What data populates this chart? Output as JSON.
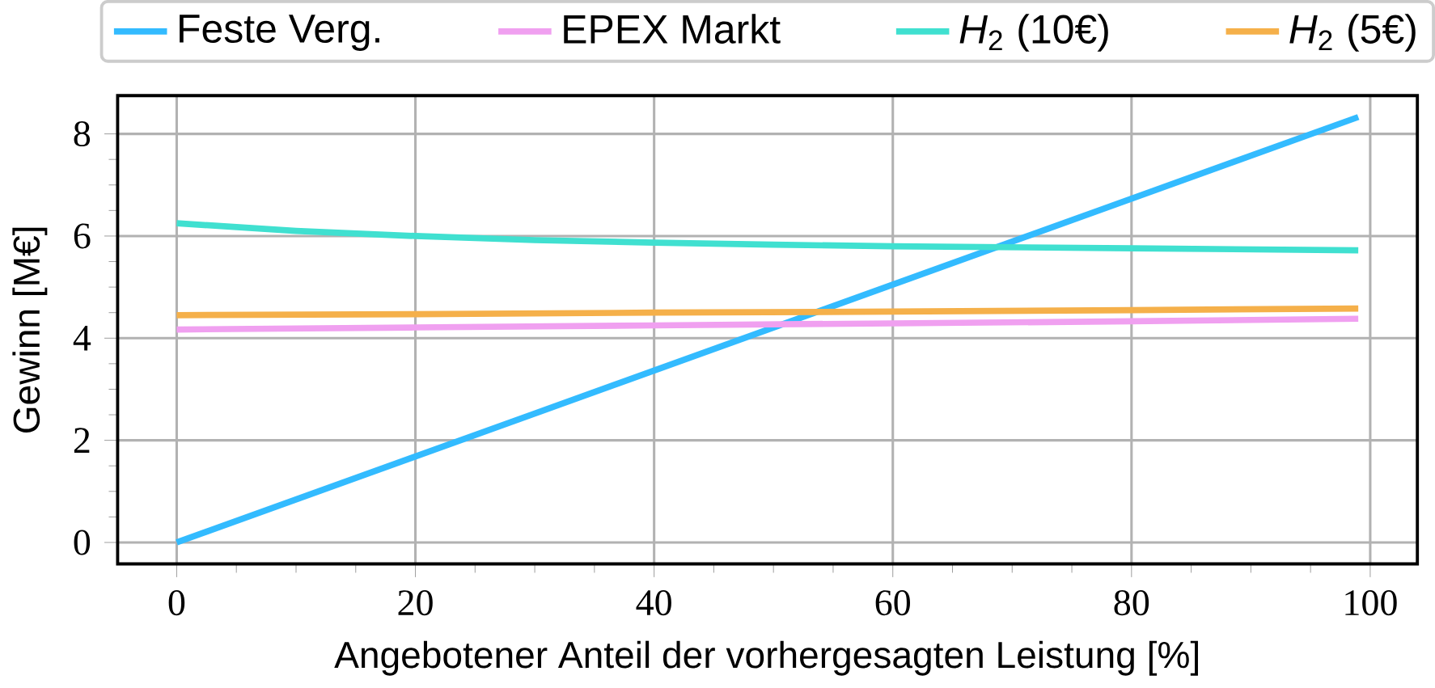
{
  "chart_data": {
    "type": "line",
    "xlabel": "Angebotener Anteil der vorhergesagten Leistung [%]",
    "ylabel": "Gewinn [M€]",
    "xlim": [
      -4.95,
      103.95
    ],
    "ylim": [
      -0.42,
      8.75
    ],
    "xticks": [
      0,
      20,
      40,
      60,
      80,
      100
    ],
    "yticks": [
      0,
      2,
      4,
      6,
      8
    ],
    "grid": true,
    "legend": "top",
    "series": [
      {
        "name": "Feste Verg.",
        "color": "#33bbff",
        "x": [
          0,
          99
        ],
        "values": [
          0,
          8.33
        ]
      },
      {
        "name": "EPEX Markt",
        "color": "#f0a0f0",
        "x": [
          0,
          20,
          40,
          60,
          80,
          99
        ],
        "values": [
          4.17,
          4.21,
          4.25,
          4.29,
          4.33,
          4.38
        ]
      },
      {
        "name": "*H*$_{2}$ (10€)",
        "color": "#40e0d0",
        "x": [
          0,
          10,
          20,
          30,
          40,
          50,
          60,
          80,
          99
        ],
        "values": [
          6.25,
          6.1,
          6.0,
          5.92,
          5.87,
          5.83,
          5.8,
          5.76,
          5.72
        ]
      },
      {
        "name": "*H*$_{2}$ (5€)",
        "color": "#f5b04a",
        "x": [
          0,
          20,
          40,
          60,
          80,
          99
        ],
        "values": [
          4.45,
          4.47,
          4.5,
          4.52,
          4.55,
          4.58
        ]
      }
    ]
  }
}
